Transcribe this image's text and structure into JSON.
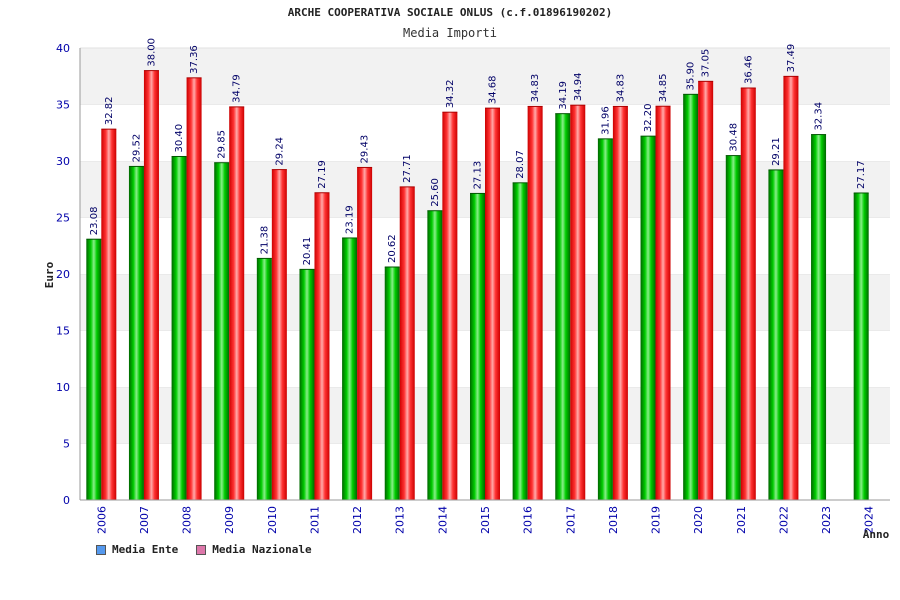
{
  "chart_data": {
    "type": "bar",
    "title": "ARCHE COOPERATIVA SOCIALE ONLUS (c.f.01896190202)",
    "subtitle": "Media Importi",
    "ylabel": "Euro",
    "xlabel": "Anno",
    "ylim": [
      0,
      40
    ],
    "yticks": [
      0,
      5,
      10,
      15,
      20,
      25,
      30,
      35,
      40
    ],
    "categories": [
      "2006",
      "2007",
      "2008",
      "2009",
      "2010",
      "2011",
      "2012",
      "2013",
      "2014",
      "2015",
      "2016",
      "2017",
      "2018",
      "2019",
      "2020",
      "2021",
      "2022",
      "2023",
      "2024"
    ],
    "series": [
      {
        "name": "Media Ente",
        "color": "#00aa00",
        "legend_color": "#5599ee",
        "values": [
          23.08,
          29.52,
          30.4,
          29.85,
          21.38,
          20.41,
          23.19,
          20.62,
          25.6,
          27.13,
          28.07,
          34.19,
          31.96,
          32.2,
          35.9,
          30.48,
          29.21,
          32.34,
          27.17
        ],
        "labels": [
          "23.08",
          "29.52",
          "30.40",
          "29.85",
          "21.38",
          "20.41",
          "23.19",
          "20.62",
          "25.60",
          "27.13",
          "28.07",
          "34.19",
          "31.96",
          "32.20",
          "35.90",
          "30.48",
          "29.21",
          "32.34",
          "27.17"
        ]
      },
      {
        "name": "Media Nazionale",
        "color": "#ee2222",
        "legend_color": "#dd77aa",
        "values": [
          32.82,
          38.0,
          37.36,
          34.79,
          29.24,
          27.19,
          29.43,
          27.71,
          34.32,
          34.68,
          34.83,
          34.94,
          34.83,
          34.85,
          37.05,
          36.46,
          37.49,
          null,
          null
        ],
        "labels": [
          "32.82",
          "38.00",
          "37.36",
          "34.79",
          "29.24",
          "27.19",
          "29.43",
          "27.71",
          "34.32",
          "34.68",
          "34.83",
          "34.94",
          "34.83",
          "34.85",
          "37.05",
          "36.46",
          "37.49",
          null,
          null
        ]
      }
    ],
    "grid": "horizontal bands",
    "legend_position": "bottom-left"
  }
}
